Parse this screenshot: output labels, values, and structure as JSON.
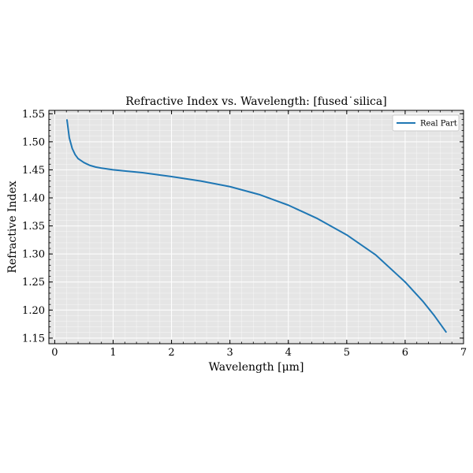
{
  "chart_data": {
    "type": "line",
    "title": "Refractive Index vs. Wavelength: [fused˙silica]",
    "xlabel": "Wavelength [μm]",
    "ylabel": "Refractive Index",
    "xlim": [
      -0.1,
      7.0
    ],
    "ylim": [
      1.14,
      1.556
    ],
    "xticks": [
      0,
      1,
      2,
      3,
      4,
      5,
      6,
      7
    ],
    "yticks": [
      1.15,
      1.2,
      1.25,
      1.3,
      1.35,
      1.4,
      1.45,
      1.5,
      1.55
    ],
    "grid": true,
    "background": "#e5e5e5",
    "legend_position": "top-right",
    "series": [
      {
        "name": "Real Part",
        "color": "#1f77b4",
        "x": [
          0.21,
          0.25,
          0.3,
          0.35,
          0.4,
          0.5,
          0.6,
          0.7,
          0.8,
          1.0,
          1.2,
          1.5,
          2.0,
          2.5,
          3.0,
          3.5,
          4.0,
          4.5,
          5.0,
          5.5,
          6.0,
          6.3,
          6.5,
          6.7
        ],
        "y": [
          1.539,
          1.507,
          1.488,
          1.477,
          1.47,
          1.463,
          1.458,
          1.455,
          1.453,
          1.45,
          1.448,
          1.445,
          1.438,
          1.43,
          1.42,
          1.406,
          1.387,
          1.363,
          1.334,
          1.298,
          1.25,
          1.216,
          1.19,
          1.161
        ]
      }
    ]
  }
}
